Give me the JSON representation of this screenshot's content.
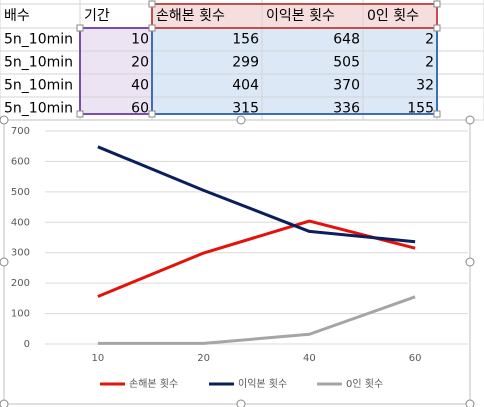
{
  "table": {
    "headers": [
      "배수",
      "기간",
      "손해본 횟수",
      "이익본 횟수",
      "0인 횟수"
    ],
    "rows": [
      [
        "5n_10min",
        10,
        156,
        648,
        2
      ],
      [
        "5n_10min",
        20,
        299,
        505,
        2
      ],
      [
        "5n_10min",
        40,
        404,
        370,
        32
      ],
      [
        "5n_10min",
        60,
        315,
        336,
        155
      ]
    ]
  },
  "chart_data": {
    "type": "line",
    "categories": [
      "10",
      "20",
      "40",
      "60"
    ],
    "series": [
      {
        "name": "손해본 횟수",
        "color": "#e3120b",
        "values": [
          156,
          299,
          404,
          315
        ]
      },
      {
        "name": "이익본 횟수",
        "color": "#0b1f5c",
        "values": [
          648,
          505,
          370,
          336
        ]
      },
      {
        "name": "0인 횟수",
        "color": "#a5a5a5",
        "values": [
          2,
          2,
          32,
          155
        ]
      }
    ],
    "ylim": [
      0,
      700
    ],
    "yticks": [
      0,
      100,
      200,
      300,
      400,
      500,
      600,
      700
    ],
    "grid": true,
    "legend": "bottom"
  }
}
